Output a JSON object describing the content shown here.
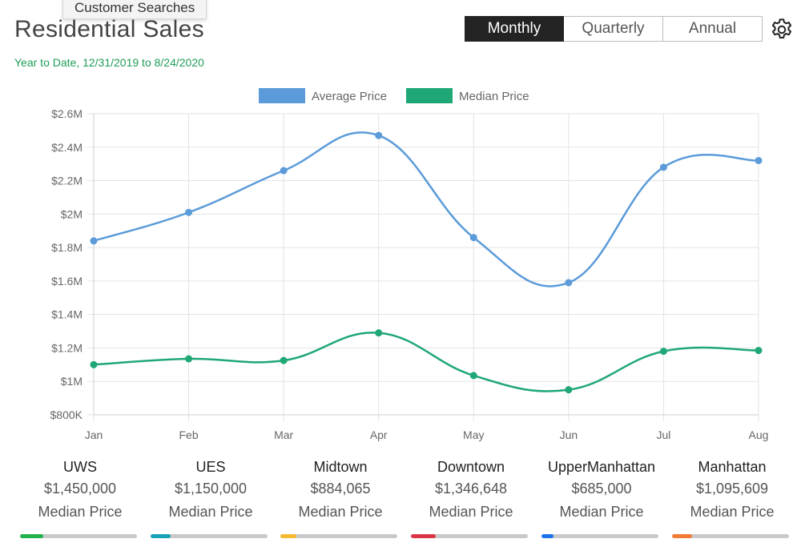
{
  "tooltip": "Customer Searches",
  "header": {
    "title": "Residential Sales",
    "subtitle": "Year to Date, 12/31/2019 to 8/24/2020"
  },
  "period_toggle": {
    "options": [
      "Monthly",
      "Quarterly",
      "Annual"
    ],
    "selected": "Monthly"
  },
  "settings_icon": "gear-icon",
  "chart_data": {
    "type": "line",
    "categories": [
      "Jan",
      "Feb",
      "Mar",
      "Apr",
      "May",
      "Jun",
      "Jul",
      "Aug"
    ],
    "series": [
      {
        "name": "Average Price",
        "color": "#5b9bd9",
        "values": [
          1840000,
          2010000,
          2260000,
          2470000,
          1860000,
          1590000,
          2280000,
          2320000
        ]
      },
      {
        "name": "Median Price",
        "color": "#1fa776",
        "values": [
          1100000,
          1135000,
          1125000,
          1290000,
          1035000,
          950000,
          1180000,
          1185000
        ]
      }
    ],
    "y_ticks": [
      "$800K",
      "$1M",
      "$1.2M",
      "$1.4M",
      "$1.6M",
      "$1.8M",
      "$2M",
      "$2.2M",
      "$2.4M",
      "$2.6M"
    ],
    "ylim": [
      800000,
      2600000
    ],
    "grid": true,
    "legend": "top-center"
  },
  "neighborhoods": [
    {
      "name": "UWS",
      "value": "$1,450,000",
      "caption": "Median Price",
      "color": "#22b24c",
      "progress": 0.2
    },
    {
      "name": "UES",
      "value": "$1,150,000",
      "caption": "Median Price",
      "color": "#17a2b8",
      "progress": 0.17
    },
    {
      "name": "Midtown",
      "value": "$884,065",
      "caption": "Median Price",
      "color": "#f5b82e",
      "progress": 0.14
    },
    {
      "name": "Downtown",
      "value": "$1,346,648",
      "caption": "Median Price",
      "color": "#dc3545",
      "progress": 0.21
    },
    {
      "name": "UpperManhattan",
      "value": "$685,000",
      "caption": "Median Price",
      "color": "#1a73e8",
      "progress": 0.1
    },
    {
      "name": "Manhattan",
      "value": "$1,095,609",
      "caption": "Median Price",
      "color": "#f27a35",
      "progress": 0.17
    }
  ]
}
